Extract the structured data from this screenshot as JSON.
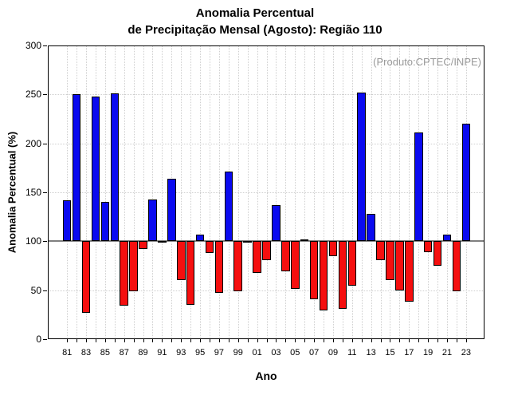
{
  "chart_data": {
    "type": "bar",
    "title_lines": [
      "Anomalia Percentual",
      "de Precipitação Mensal (Agosto): Região 110"
    ],
    "annotation": "(Produto:CPTEC/INPE)",
    "xlabel": "Ano",
    "ylabel": "Anomalia Percentual (%)",
    "ylim": [
      0,
      300
    ],
    "yticks": [
      0,
      50,
      100,
      150,
      200,
      250,
      300
    ],
    "ygrid": [
      50,
      150,
      200,
      250
    ],
    "baseline": 100,
    "grid": "dotted",
    "legend_position": "none",
    "categories": [
      "81",
      "82",
      "83",
      "84",
      "85",
      "86",
      "87",
      "88",
      "89",
      "90",
      "91",
      "92",
      "93",
      "94",
      "95",
      "96",
      "97",
      "98",
      "99",
      "00",
      "01",
      "02",
      "03",
      "04",
      "05",
      "06",
      "07",
      "08",
      "09",
      "10",
      "11",
      "12",
      "13",
      "14",
      "15",
      "16",
      "17",
      "18",
      "19",
      "20",
      "21",
      "22",
      "23"
    ],
    "values": [
      142,
      250,
      27,
      248,
      140,
      251,
      34,
      49,
      92,
      143,
      99,
      164,
      60,
      35,
      107,
      88,
      47,
      171,
      49,
      99,
      68,
      81,
      137,
      69,
      51,
      102,
      41,
      29,
      85,
      31,
      55,
      252,
      128,
      81,
      60,
      50,
      38,
      211,
      89,
      75,
      107,
      49,
      220
    ],
    "xtick_label_every": 2,
    "colors": {
      "above_baseline": "#0a0af0",
      "below_baseline": "#f50f0f",
      "bar_border": "#000000",
      "baseline_line": "#808080",
      "gridline": "#cfcfcf",
      "annotation_text": "#9a9a9a",
      "axis": "#000000"
    }
  }
}
